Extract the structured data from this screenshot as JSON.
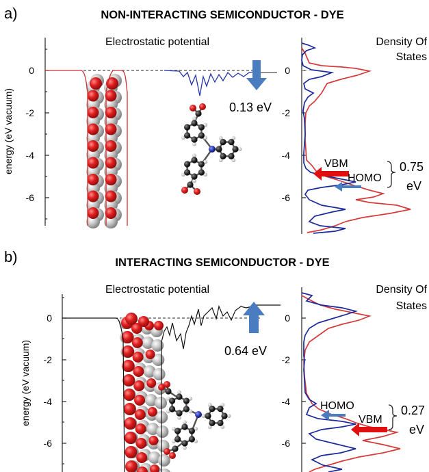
{
  "panels": [
    {
      "letter": "a)",
      "title": "NON-INTERACTING SEMICONDUCTOR - DYE",
      "potential_label": "Electrostatic potential",
      "dos_label_line1": "Density Of",
      "dos_label_line2": "States",
      "ylabel": "energy (eV vacuum)",
      "y_ticks": [
        "0",
        "-2",
        "-4",
        "-6"
      ],
      "dos_ticks": [
        "0",
        "-2",
        "-4",
        "-6"
      ],
      "shift_value": "0.13 eV",
      "shift_direction": "down",
      "upper_level_label": "VBM",
      "lower_level_label": "HOMO",
      "gap_value_line1": "0.75",
      "gap_value_line2": "eV"
    },
    {
      "letter": "b)",
      "title": "INTERACTING SEMICONDUCTOR - DYE",
      "potential_label": "Electrostatic potential",
      "dos_label_line1": "Density Of",
      "dos_label_line2": "States",
      "ylabel": "energy (eV vacuum)",
      "y_ticks": [
        "0",
        "-2",
        "-4",
        "-6"
      ],
      "dos_ticks": [
        "0",
        "-2",
        "-4",
        "-6"
      ],
      "shift_value": "0.64 eV",
      "shift_direction": "up",
      "upper_level_label": "HOMO",
      "lower_level_label": "VBM",
      "gap_value_line1": "0.27",
      "gap_value_line2": "eV"
    }
  ],
  "colors": {
    "oxygen": "#d42020",
    "metal": "#b8b8b8",
    "carbon": "#222222",
    "nitrogen": "#3344bb",
    "hydrogen": "#e0e0e0",
    "arrow_blue": "#4a7cc0",
    "arrow_red": "#e01010",
    "dos_red": "#d63a3a",
    "dos_blue": "#1a2a9a",
    "potential_blue": "#2233aa"
  }
}
